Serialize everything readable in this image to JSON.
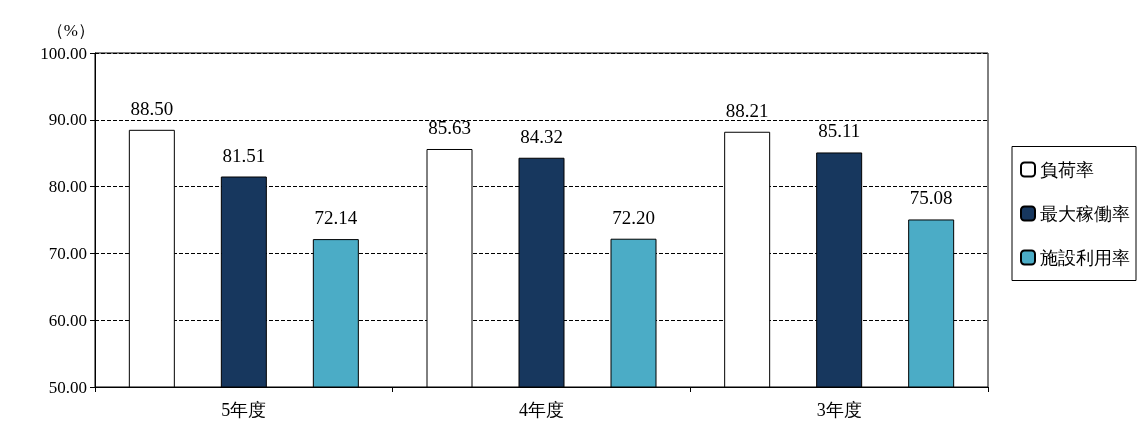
{
  "chart_data": {
    "type": "bar",
    "ylabel": "（%）",
    "categories": [
      "5年度",
      "4年度",
      "3年度"
    ],
    "series": [
      {
        "name": "負荷率",
        "color": "#ffffff",
        "values": [
          88.5,
          85.63,
          88.21
        ],
        "value_labels": [
          "88.50",
          "85.63",
          "88.21"
        ]
      },
      {
        "name": "最大稼働率",
        "color": "#17375e",
        "values": [
          81.51,
          84.32,
          85.11
        ],
        "value_labels": [
          "81.51",
          "84.32",
          "85.11"
        ]
      },
      {
        "name": "施設利用率",
        "color": "#4bacc6",
        "values": [
          72.14,
          72.2,
          75.08
        ],
        "value_labels": [
          "72.14",
          "72.20",
          "75.08"
        ]
      }
    ],
    "ylim": [
      50,
      100
    ],
    "yticks": [
      {
        "value": 50,
        "label": "50.00"
      },
      {
        "value": 60,
        "label": "60.00"
      },
      {
        "value": 70,
        "label": "70.00"
      },
      {
        "value": 80,
        "label": "80.00"
      },
      {
        "value": 90,
        "label": "90.00"
      },
      {
        "value": 100,
        "label": "100.00"
      }
    ],
    "grid": "y",
    "legend": "right"
  }
}
